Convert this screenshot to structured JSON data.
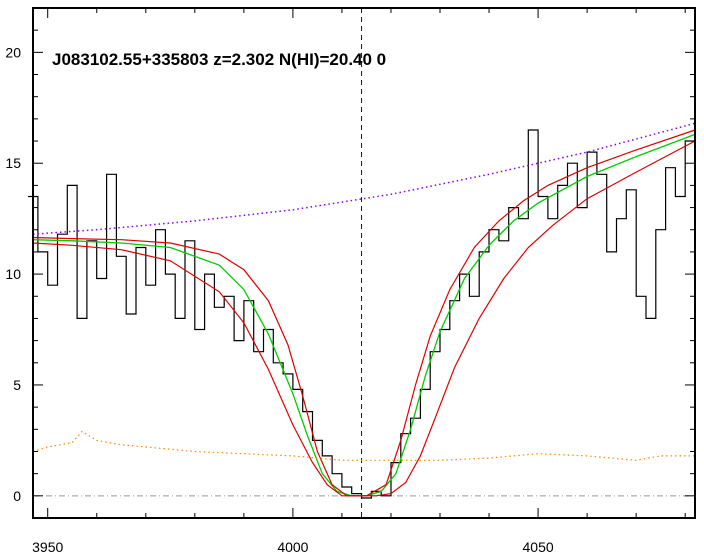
{
  "chart_data": {
    "type": "line",
    "title": "J083102.55+335803 z=2.302 N(HI)=20.40 0",
    "xlabel": "",
    "ylabel": "",
    "xlim": [
      3947,
      4082
    ],
    "ylim": [
      -1,
      22
    ],
    "x_ticks": [
      3950,
      4000,
      4050
    ],
    "y_ticks": [
      0,
      5,
      10,
      15,
      20
    ],
    "grid": false,
    "legend": "none",
    "absorber_center": 4014,
    "colors": {
      "flux": "#000000",
      "fit": "#00cc00",
      "fit_bounds": "#dd0000",
      "continuum": "#8800ff",
      "error": "#ff8800",
      "center_line": "#0000cc",
      "zero_line": "#999999"
    },
    "series": [
      {
        "role": "flux",
        "x": [
          3947,
          3949,
          3951,
          3953,
          3955,
          3957,
          3959,
          3961,
          3963,
          3965,
          3967,
          3969,
          3971,
          3973,
          3975,
          3977,
          3979,
          3981,
          3983,
          3985,
          3987,
          3989,
          3991,
          3993,
          3995,
          3997,
          3999,
          4001,
          4003,
          4005,
          4007,
          4009,
          4011,
          4013,
          4015,
          4017,
          4019,
          4021,
          4023,
          4025,
          4027,
          4029,
          4031,
          4033,
          4035,
          4037,
          4039,
          4041,
          4043,
          4045,
          4047,
          4049,
          4051,
          4053,
          4055,
          4057,
          4059,
          4061,
          4063,
          4065,
          4067,
          4069,
          4071,
          4073,
          4075,
          4077,
          4079,
          4081
        ],
        "y": [
          13.5,
          11.0,
          9.5,
          11.8,
          14.0,
          8.0,
          11.5,
          9.8,
          14.5,
          10.8,
          8.2,
          11.2,
          9.5,
          12.0,
          10.0,
          8.0,
          11.5,
          7.5,
          10.0,
          8.5,
          9.0,
          7.0,
          8.8,
          6.5,
          7.5,
          6.0,
          5.5,
          4.8,
          3.8,
          2.5,
          1.8,
          1.0,
          0.4,
          0.1,
          -0.1,
          0.2,
          0.0,
          1.5,
          2.8,
          3.5,
          4.8,
          6.5,
          7.5,
          8.8,
          10.0,
          9.0,
          11.0,
          12.0,
          11.5,
          13.0,
          12.5,
          16.5,
          13.5,
          12.5,
          14.0,
          15.0,
          13.0,
          15.5,
          14.5,
          11.0,
          12.5,
          13.8,
          9.0,
          8.0,
          12.0,
          14.8,
          13.5,
          16.0
        ]
      },
      {
        "role": "fit",
        "x": [
          3947,
          3955,
          3965,
          3975,
          3985,
          3990,
          3995,
          4000,
          4003,
          4006,
          4009,
          4012,
          4015,
          4018,
          4021,
          4024,
          4027,
          4030,
          4035,
          4040,
          4045,
          4050,
          4060,
          4070,
          4082
        ],
        "y": [
          11.55,
          11.5,
          11.4,
          11.2,
          10.4,
          9.3,
          7.3,
          4.6,
          2.7,
          1.0,
          0.2,
          0.0,
          0.0,
          0.2,
          1.0,
          3.0,
          5.4,
          7.4,
          9.8,
          11.3,
          12.4,
          13.2,
          14.4,
          15.3,
          16.3
        ]
      },
      {
        "role": "fit-upper",
        "x": [
          3947,
          3955,
          3965,
          3975,
          3985,
          3990,
          3995,
          3999,
          4002,
          4005,
          4008,
          4011,
          4015,
          4019,
          4022,
          4025,
          4028,
          4032,
          4037,
          4042,
          4047,
          4052,
          4060,
          4070,
          4082
        ],
        "y": [
          11.65,
          11.6,
          11.55,
          11.4,
          10.9,
          10.2,
          8.8,
          6.8,
          4.5,
          2.0,
          0.5,
          0.0,
          0.0,
          0.5,
          2.5,
          5.0,
          7.2,
          9.3,
          11.2,
          12.4,
          13.3,
          14.0,
          14.8,
          15.6,
          16.5
        ]
      },
      {
        "role": "fit-lower",
        "x": [
          3947,
          3955,
          3965,
          3975,
          3985,
          3990,
          3995,
          4000,
          4004,
          4007,
          4010,
          4013,
          4017,
          4020,
          4023,
          4026,
          4029,
          4033,
          4038,
          4043,
          4048,
          4053,
          4060,
          4070,
          4082
        ],
        "y": [
          11.4,
          11.3,
          11.1,
          10.6,
          9.2,
          7.8,
          5.7,
          3.2,
          1.5,
          0.5,
          0.0,
          0.0,
          0.0,
          0.1,
          0.6,
          1.8,
          3.5,
          5.8,
          8.0,
          9.8,
          11.2,
          12.2,
          13.4,
          14.6,
          16.0
        ]
      },
      {
        "role": "continuum",
        "x": [
          3947,
          3960,
          3980,
          4000,
          4020,
          4040,
          4060,
          4082
        ],
        "y": [
          11.8,
          12.0,
          12.4,
          12.9,
          13.6,
          14.5,
          15.5,
          16.8
        ]
      },
      {
        "role": "error",
        "x": [
          3947,
          3950,
          3955,
          3957,
          3960,
          3965,
          3970,
          3980,
          3990,
          4000,
          4010,
          4020,
          4030,
          4040,
          4050,
          4060,
          4070,
          4075,
          4082
        ],
        "y": [
          2.0,
          2.2,
          2.4,
          2.9,
          2.5,
          2.3,
          2.2,
          2.0,
          1.9,
          1.8,
          1.6,
          1.6,
          1.6,
          1.7,
          1.9,
          1.8,
          1.6,
          1.8,
          1.8
        ]
      }
    ]
  }
}
